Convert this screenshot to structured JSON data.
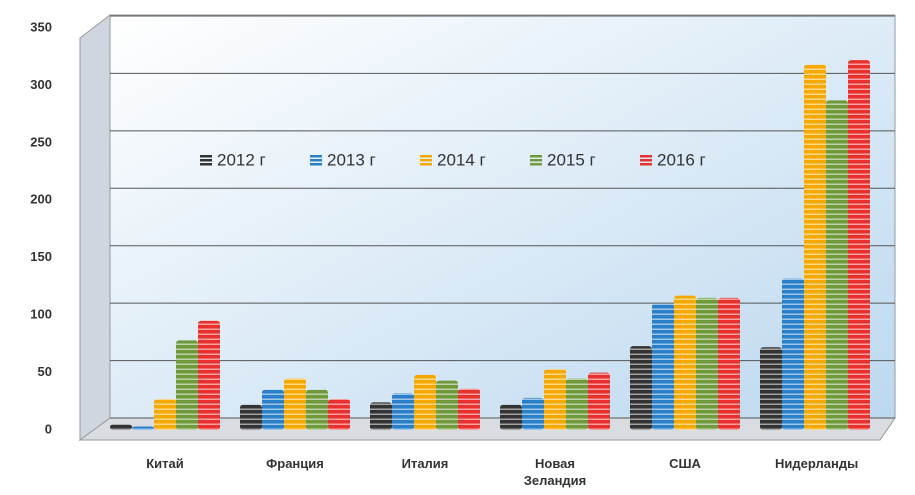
{
  "chart_data": {
    "type": "bar",
    "categories": [
      "Китай",
      "Франция",
      "Италия",
      "Новая Зеландия",
      "США",
      "Нидерланды"
    ],
    "series": [
      {
        "name": "2012 г",
        "color": "#333333",
        "values": [
          5,
          22,
          24,
          22,
          73,
          72
        ]
      },
      {
        "name": "2013 г",
        "color": "#2a7fc9",
        "values": [
          3,
          35,
          32,
          28,
          110,
          132
        ]
      },
      {
        "name": "2014 г",
        "color": "#f5a800",
        "values": [
          27,
          45,
          48,
          53,
          117,
          318
        ]
      },
      {
        "name": "2015 г",
        "color": "#6f9a3c",
        "values": [
          78,
          35,
          43,
          45,
          115,
          287
        ]
      },
      {
        "name": "2016 г",
        "color": "#e8312f",
        "values": [
          95,
          27,
          36,
          50,
          115,
          322
        ]
      }
    ],
    "ylim": [
      0,
      350
    ],
    "yticks": [
      0,
      50,
      100,
      150,
      200,
      250,
      300,
      350
    ],
    "grid": true
  }
}
